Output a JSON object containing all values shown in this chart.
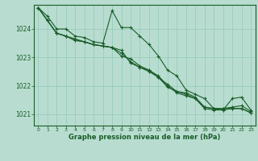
{
  "background_color": "#b8ddd0",
  "grid_color": "#99ccbb",
  "line_color": "#1a5c28",
  "xlabel": "Graphe pression niveau de la mer (hPa)",
  "xlim": [
    -0.5,
    23.5
  ],
  "ylim": [
    1020.6,
    1024.85
  ],
  "yticks": [
    1021,
    1022,
    1023,
    1024
  ],
  "xticks": [
    0,
    1,
    2,
    3,
    4,
    5,
    6,
    7,
    8,
    9,
    10,
    11,
    12,
    13,
    14,
    15,
    16,
    17,
    18,
    19,
    20,
    21,
    22,
    23
  ],
  "series": [
    [
      1024.75,
      1024.45,
      1024.0,
      1024.0,
      1023.75,
      1023.7,
      1023.55,
      1023.5,
      1024.65,
      1024.05,
      1024.05,
      1023.75,
      1023.45,
      1023.05,
      1022.55,
      1022.35,
      1021.85,
      1021.7,
      1021.55,
      1021.2,
      1021.15,
      1021.55,
      1021.6,
      1021.15
    ],
    [
      1024.75,
      1024.3,
      1023.85,
      1023.75,
      1023.6,
      1023.55,
      1023.45,
      1023.4,
      1023.35,
      1023.25,
      1022.8,
      1022.65,
      1022.55,
      1022.3,
      1022.05,
      1021.8,
      1021.75,
      1021.6,
      1021.25,
      1021.2,
      1021.2,
      1021.25,
      1021.3,
      1021.1
    ],
    [
      1024.75,
      1024.3,
      1023.85,
      1023.75,
      1023.6,
      1023.55,
      1023.45,
      1023.4,
      1023.35,
      1023.15,
      1022.85,
      1022.65,
      1022.5,
      1022.3,
      1021.95,
      1021.8,
      1021.7,
      1021.55,
      1021.25,
      1021.2,
      1021.2,
      1021.2,
      1021.2,
      1021.05
    ],
    [
      1024.75,
      1024.3,
      1023.85,
      1023.75,
      1023.65,
      1023.55,
      1023.45,
      1023.4,
      1023.35,
      1023.05,
      1022.95,
      1022.7,
      1022.55,
      1022.35,
      1022.0,
      1021.75,
      1021.65,
      1021.55,
      1021.2,
      1021.15,
      1021.15,
      1021.2,
      1021.2,
      1021.05
    ]
  ]
}
